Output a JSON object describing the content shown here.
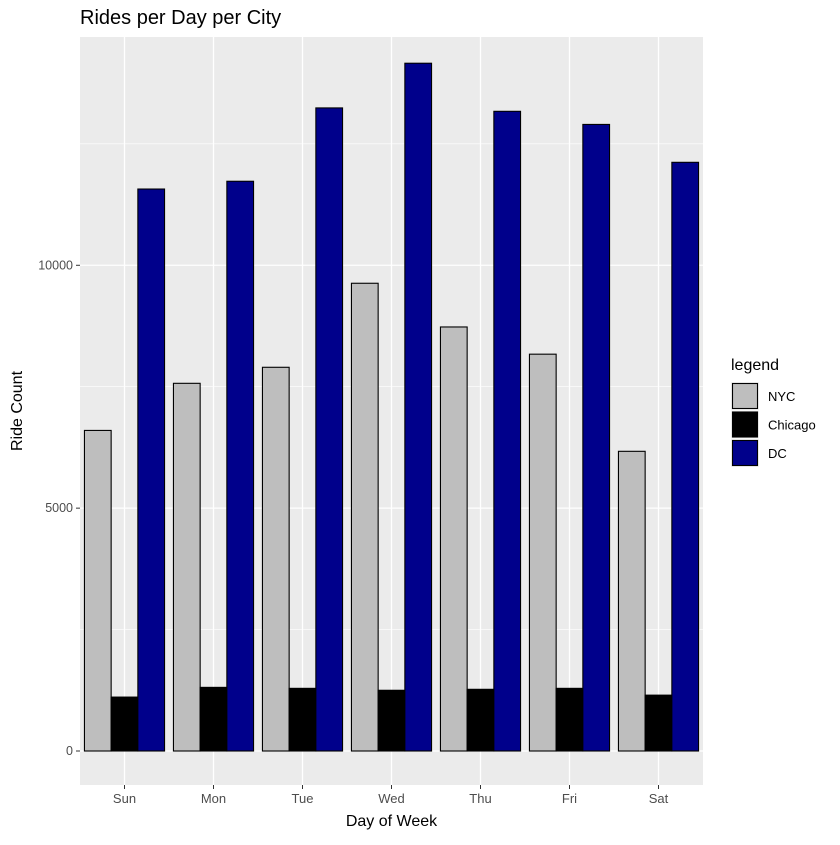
{
  "chart_data": {
    "type": "bar",
    "title": "Rides per Day per City",
    "xlabel": "Day of Week",
    "ylabel": "Ride Count",
    "categories": [
      "Sun",
      "Mon",
      "Tue",
      "Wed",
      "Thu",
      "Fri",
      "Sat"
    ],
    "ylim": [
      -700,
      14700
    ],
    "yticks": [
      0,
      5000,
      10000
    ],
    "ytick_labels": [
      "0",
      "5000",
      "10000"
    ],
    "grid": true,
    "legend": {
      "title": "legend",
      "placement": "right",
      "entries": [
        "NYC",
        "Chicago",
        "DC"
      ]
    },
    "series": [
      {
        "name": "NYC",
        "color": "#bebebe",
        "values": [
          6600,
          7570,
          7900,
          9630,
          8730,
          8170,
          6170
        ]
      },
      {
        "name": "Chicago",
        "color": "#000000",
        "values": [
          1110,
          1310,
          1290,
          1250,
          1270,
          1290,
          1150
        ]
      },
      {
        "name": "DC",
        "color": "#00008b",
        "values": [
          11570,
          11730,
          13240,
          14160,
          13170,
          12900,
          12120
        ]
      }
    ],
    "panel_background": "#ebebeb",
    "grid_color": "#ffffff"
  }
}
